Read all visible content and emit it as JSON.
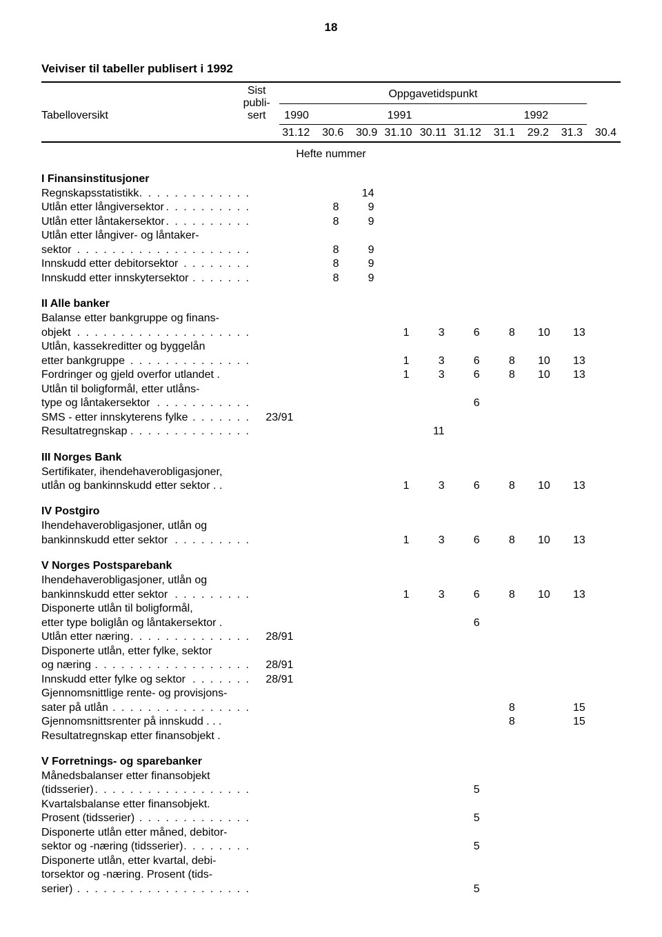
{
  "page_number": "18",
  "title": "Veiviser til tabeller publisert i 1992",
  "header": {
    "tabelloversikt": "Tabelloversikt",
    "sist_publisert": "Sist publi-sert",
    "oppgavetidspunkt": "Oppgavetidspunkt",
    "years": {
      "y1990": "1990",
      "y1991": "1991",
      "y1992": "1992"
    },
    "cols": {
      "c1": "31.12",
      "c2": "30.6",
      "c3": "30.9",
      "c4": "31.10",
      "c5": "30.11",
      "c6": "31.12",
      "c7": "31.1",
      "c8": "29.2",
      "c9": "31.3",
      "c10": "30.4"
    },
    "hefte": "Hefte nummer"
  },
  "sections": {
    "s1": {
      "title": "I   Finansinstitusjoner",
      "rows": [
        {
          "label": "Regnskapsstatistikk",
          "dots": true,
          "c2": "14"
        },
        {
          "label": "Utlån etter långiversektor",
          "dots": true,
          "c1": "8",
          "c2": "9"
        },
        {
          "label": "Utlån etter låntakersektor",
          "dots": true,
          "c1": "8",
          "c2": "9"
        },
        {
          "label": "Utlån etter långiver- og låntaker-",
          "dots": false
        },
        {
          "label": "sektor",
          "dots": true,
          "c1": "8",
          "c2": "9"
        },
        {
          "label": "Innskudd etter debitorsektor",
          "dots": true,
          "c1": "8",
          "c2": "9"
        },
        {
          "label": "Innskudd etter innskytersektor",
          "dots": true,
          "c1": "8",
          "c2": "9"
        }
      ]
    },
    "s2": {
      "title": "II   Alle banker",
      "rows": [
        {
          "label": "Balanse etter bankgruppe og finans-",
          "dots": false
        },
        {
          "label": "objekt",
          "dots": true,
          "c3": "1",
          "c4": "3",
          "c5": "6",
          "c6": "8",
          "c7": "10",
          "c8": "13"
        },
        {
          "label": "Utlån, kassekreditter og byggelån",
          "dots": false
        },
        {
          "label": "etter bankgruppe",
          "dots": true,
          "c3": "1",
          "c4": "3",
          "c5": "6",
          "c6": "8",
          "c7": "10",
          "c8": "13"
        },
        {
          "label": "Fordringer og gjeld overfor utlandet .",
          "dots": false,
          "c3": "1",
          "c4": "3",
          "c5": "6",
          "c6": "8",
          "c7": "10",
          "c8": "13"
        },
        {
          "label": "Utlån til boligformål, etter utlåns-",
          "dots": false
        },
        {
          "label": "type og låntakersektor",
          "dots": true,
          "c5": "6"
        },
        {
          "label": "SMS - etter innskyterens fylke",
          "dots": true,
          "sist": "23/91"
        },
        {
          "label": "Resultatregnskap",
          "dots": true,
          "c4": "11"
        }
      ]
    },
    "s3": {
      "title": "III   Norges Bank",
      "rows": [
        {
          "label": "Sertifikater, ihendehaverobligasjoner,",
          "dots": false
        },
        {
          "label": "utlån og bankinnskudd etter sektor . .",
          "dots": false,
          "c3": "1",
          "c4": "3",
          "c5": "6",
          "c6": "8",
          "c7": "10",
          "c8": "13"
        }
      ]
    },
    "s4": {
      "title": "IV   Postgiro",
      "rows": [
        {
          "label": "Ihendehaverobligasjoner, utlån og",
          "dots": false
        },
        {
          "label": "bankinnskudd etter sektor",
          "dots": true,
          "c3": "1",
          "c4": "3",
          "c5": "6",
          "c6": "8",
          "c7": "10",
          "c8": "13"
        }
      ]
    },
    "s5": {
      "title": "V   Norges Postsparebank",
      "rows": [
        {
          "label": "Ihendehaverobligasjoner, utlån og",
          "dots": false
        },
        {
          "label": "bankinnskudd etter sektor",
          "dots": true,
          "c3": "1",
          "c4": "3",
          "c5": "6",
          "c6": "8",
          "c7": "10",
          "c8": "13"
        },
        {
          "label": "Disponerte utlån til boligformål,",
          "dots": false
        },
        {
          "label": "etter type boliglån og låntakersektor .",
          "dots": false,
          "c5": "6"
        },
        {
          "label": "Utlån etter næring",
          "dots": true,
          "sist": "28/91"
        },
        {
          "label": "Disponerte utlån, etter fylke, sektor",
          "dots": false
        },
        {
          "label": "og næring",
          "dots": true,
          "sist": "28/91"
        },
        {
          "label": "Innskudd etter fylke og sektor",
          "dots": true,
          "sist": "28/91"
        },
        {
          "label": "Gjennomsnittlige rente- og provisjons-",
          "dots": false
        },
        {
          "label": "sater på utlån",
          "dots": true,
          "c6": "8",
          "c8": "15"
        },
        {
          "label": "Gjennomsnittsrenter på innskudd . . .",
          "dots": false,
          "c6": "8",
          "c8": "15"
        },
        {
          "label": "Resultatregnskap etter finansobjekt  .",
          "dots": false
        }
      ]
    },
    "s6": {
      "title": "V   Forretnings- og sparebanker",
      "rows": [
        {
          "label": "Månedsbalanser etter finansobjekt",
          "dots": false
        },
        {
          "label": "(tidsserier)",
          "dots": true,
          "c5": "5"
        },
        {
          "label": "Kvartalsbalanse etter finansobjekt.",
          "dots": false
        },
        {
          "label": "Prosent (tidsserier)",
          "dots": true,
          "c5": "5"
        },
        {
          "label": "Disponerte utlån etter måned, debitor-",
          "dots": false
        },
        {
          "label": "sektor og -næring (tidsserier)",
          "dots": true,
          "c5": "5"
        },
        {
          "label": "Disponerte utlån, etter kvartal, debi-",
          "dots": false
        },
        {
          "label": "torsektor og -næring. Prosent (tids-",
          "dots": false
        },
        {
          "label": "serier)",
          "dots": true,
          "c5": "5"
        }
      ]
    }
  }
}
